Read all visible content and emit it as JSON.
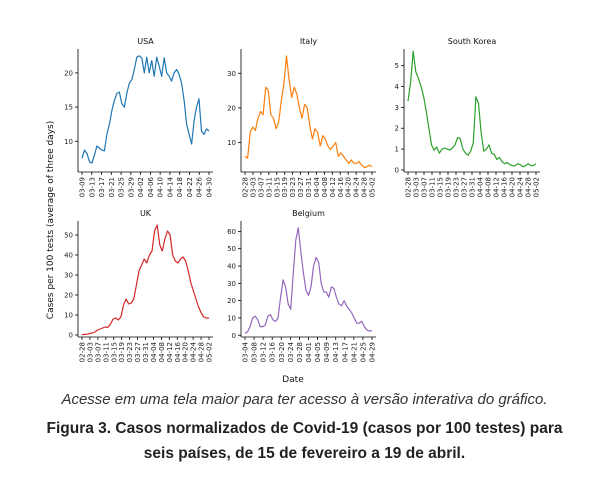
{
  "caption": {
    "note": "Acesse em uma tela maior para ter acesso à versão interativa do gráfico.",
    "title": "Figura 3. Casos normalizados de Covid-19 (casos por 100 testes) para seis países, de 15 de fevereiro a 19 de abril."
  },
  "chart_data": [
    {
      "type": "line",
      "title": "USA",
      "color": "#1f77b4",
      "ylim": [
        5.5,
        23.5
      ],
      "yticks": [
        10,
        15,
        20
      ],
      "xticks": [
        "03-09",
        "03-13",
        "03-17",
        "03-21",
        "03-25",
        "03-29",
        "04-02",
        "04-06",
        "04-10",
        "04-14",
        "04-18",
        "04-22",
        "04-26",
        "04-30"
      ],
      "values": [
        7.5,
        8.7,
        8.2,
        7.0,
        6.8,
        8.0,
        9.3,
        9.0,
        8.7,
        8.6,
        11.0,
        12.5,
        14.5,
        16.0,
        17.0,
        17.2,
        15.5,
        15.0,
        17.0,
        18.5,
        19.0,
        20.5,
        22.3,
        22.5,
        22.2,
        20.0,
        22.3,
        20.0,
        21.8,
        19.5,
        22.3,
        21.0,
        19.5,
        22.2,
        20.0,
        19.5,
        18.8,
        20.0,
        20.5,
        19.8,
        18.5,
        16.0,
        12.5,
        11.0,
        9.6,
        13.0,
        15.0,
        16.2,
        11.5,
        11.0,
        11.8,
        11.5
      ]
    },
    {
      "type": "line",
      "title": "Italy",
      "color": "#ff7f0e",
      "ylim": [
        1.5,
        37
      ],
      "yticks": [
        10,
        20,
        30
      ],
      "xticks": [
        "02-28",
        "03-03",
        "03-07",
        "03-11",
        "03-15",
        "03-19",
        "03-23",
        "03-27",
        "03-31",
        "04-04",
        "04-08",
        "04-12",
        "04-16",
        "04-20",
        "04-24",
        "04-28",
        "05-02"
      ],
      "values": [
        6,
        5.5,
        13,
        14.5,
        13.5,
        17,
        19,
        18,
        26,
        25,
        18,
        17,
        14,
        16,
        22,
        27,
        35,
        28,
        23,
        26,
        24,
        20,
        17,
        21,
        20,
        15,
        11,
        14,
        13,
        9,
        12,
        11,
        9,
        8,
        9,
        10,
        6,
        7,
        6,
        5,
        4,
        5,
        4,
        4,
        4.5,
        3.5,
        2.8,
        3,
        3.5,
        3
      ]
    },
    {
      "type": "line",
      "title": "South Korea",
      "color": "#2ca02c",
      "ylim": [
        -0.1,
        5.8
      ],
      "yticks": [
        0,
        1,
        2,
        3,
        4,
        5
      ],
      "xticks": [
        "02-28",
        "03-03",
        "03-07",
        "03-11",
        "03-15",
        "03-19",
        "03-23",
        "03-27",
        "03-31",
        "04-04",
        "04-08",
        "04-12",
        "04-16",
        "04-20",
        "04-24",
        "04-28",
        "05-02"
      ],
      "values": [
        3.3,
        4.2,
        5.7,
        4.7,
        4.4,
        4.0,
        3.5,
        2.8,
        2.0,
        1.2,
        0.95,
        1.1,
        0.8,
        1.0,
        1.05,
        1.0,
        0.95,
        1.05,
        1.2,
        1.55,
        1.5,
        1.0,
        0.8,
        0.7,
        0.9,
        1.3,
        3.5,
        3.2,
        1.8,
        0.9,
        1.0,
        1.2,
        0.8,
        0.75,
        0.5,
        0.6,
        0.4,
        0.3,
        0.35,
        0.25,
        0.2,
        0.2,
        0.3,
        0.25,
        0.15,
        0.2,
        0.3,
        0.2,
        0.2,
        0.3
      ]
    },
    {
      "type": "line",
      "title": "UK",
      "color": "#d62728",
      "ylim": [
        -1,
        57
      ],
      "yticks": [
        0,
        10,
        20,
        30,
        40,
        50
      ],
      "xticks": [
        "02-28",
        "03-03",
        "03-07",
        "03-11",
        "03-15",
        "03-19",
        "03-23",
        "03-27",
        "03-31",
        "04-04",
        "04-08",
        "04-12",
        "04-16",
        "04-20",
        "04-24",
        "04-28",
        "05-02"
      ],
      "values": [
        0.2,
        0.3,
        0.4,
        0.8,
        1.0,
        1.5,
        2.5,
        3.0,
        3.5,
        4.0,
        3.8,
        5.5,
        8.0,
        8.5,
        7.5,
        9.0,
        15.0,
        18.0,
        15.5,
        16.0,
        18.0,
        25.0,
        32.0,
        35.0,
        38.0,
        36.0,
        40.0,
        42.0,
        52.0,
        55.0,
        45.0,
        42.0,
        48.0,
        52.0,
        50.0,
        40.0,
        37.0,
        36.0,
        38.0,
        39.0,
        37.0,
        32.0,
        26.0,
        22.0,
        18.0,
        14.0,
        11.0,
        9.0,
        8.5,
        8.5
      ]
    },
    {
      "type": "line",
      "title": "Belgium",
      "color": "#9467bd",
      "ylim": [
        -1,
        66
      ],
      "yticks": [
        0,
        10,
        20,
        30,
        40,
        50,
        60
      ],
      "xticks": [
        "03-04",
        "03-08",
        "03-12",
        "03-16",
        "03-20",
        "03-24",
        "03-28",
        "04-01",
        "04-05",
        "04-09",
        "04-13",
        "04-17",
        "04-21",
        "04-25",
        "04-29"
      ],
      "values": [
        1,
        2,
        5,
        10,
        11,
        9,
        5,
        5,
        6,
        11,
        12,
        9,
        8,
        10,
        22,
        32,
        28,
        18,
        15,
        36,
        55,
        62,
        48,
        36,
        26,
        23,
        28,
        40,
        45,
        42,
        30,
        25,
        25,
        22,
        28,
        27,
        22,
        18,
        17,
        20,
        17,
        15,
        13,
        10,
        7,
        7,
        8,
        5,
        3,
        2.5,
        2.5
      ]
    }
  ],
  "xlabel": "Date",
  "ylabel": "Cases per 100 tests (average of three days)"
}
